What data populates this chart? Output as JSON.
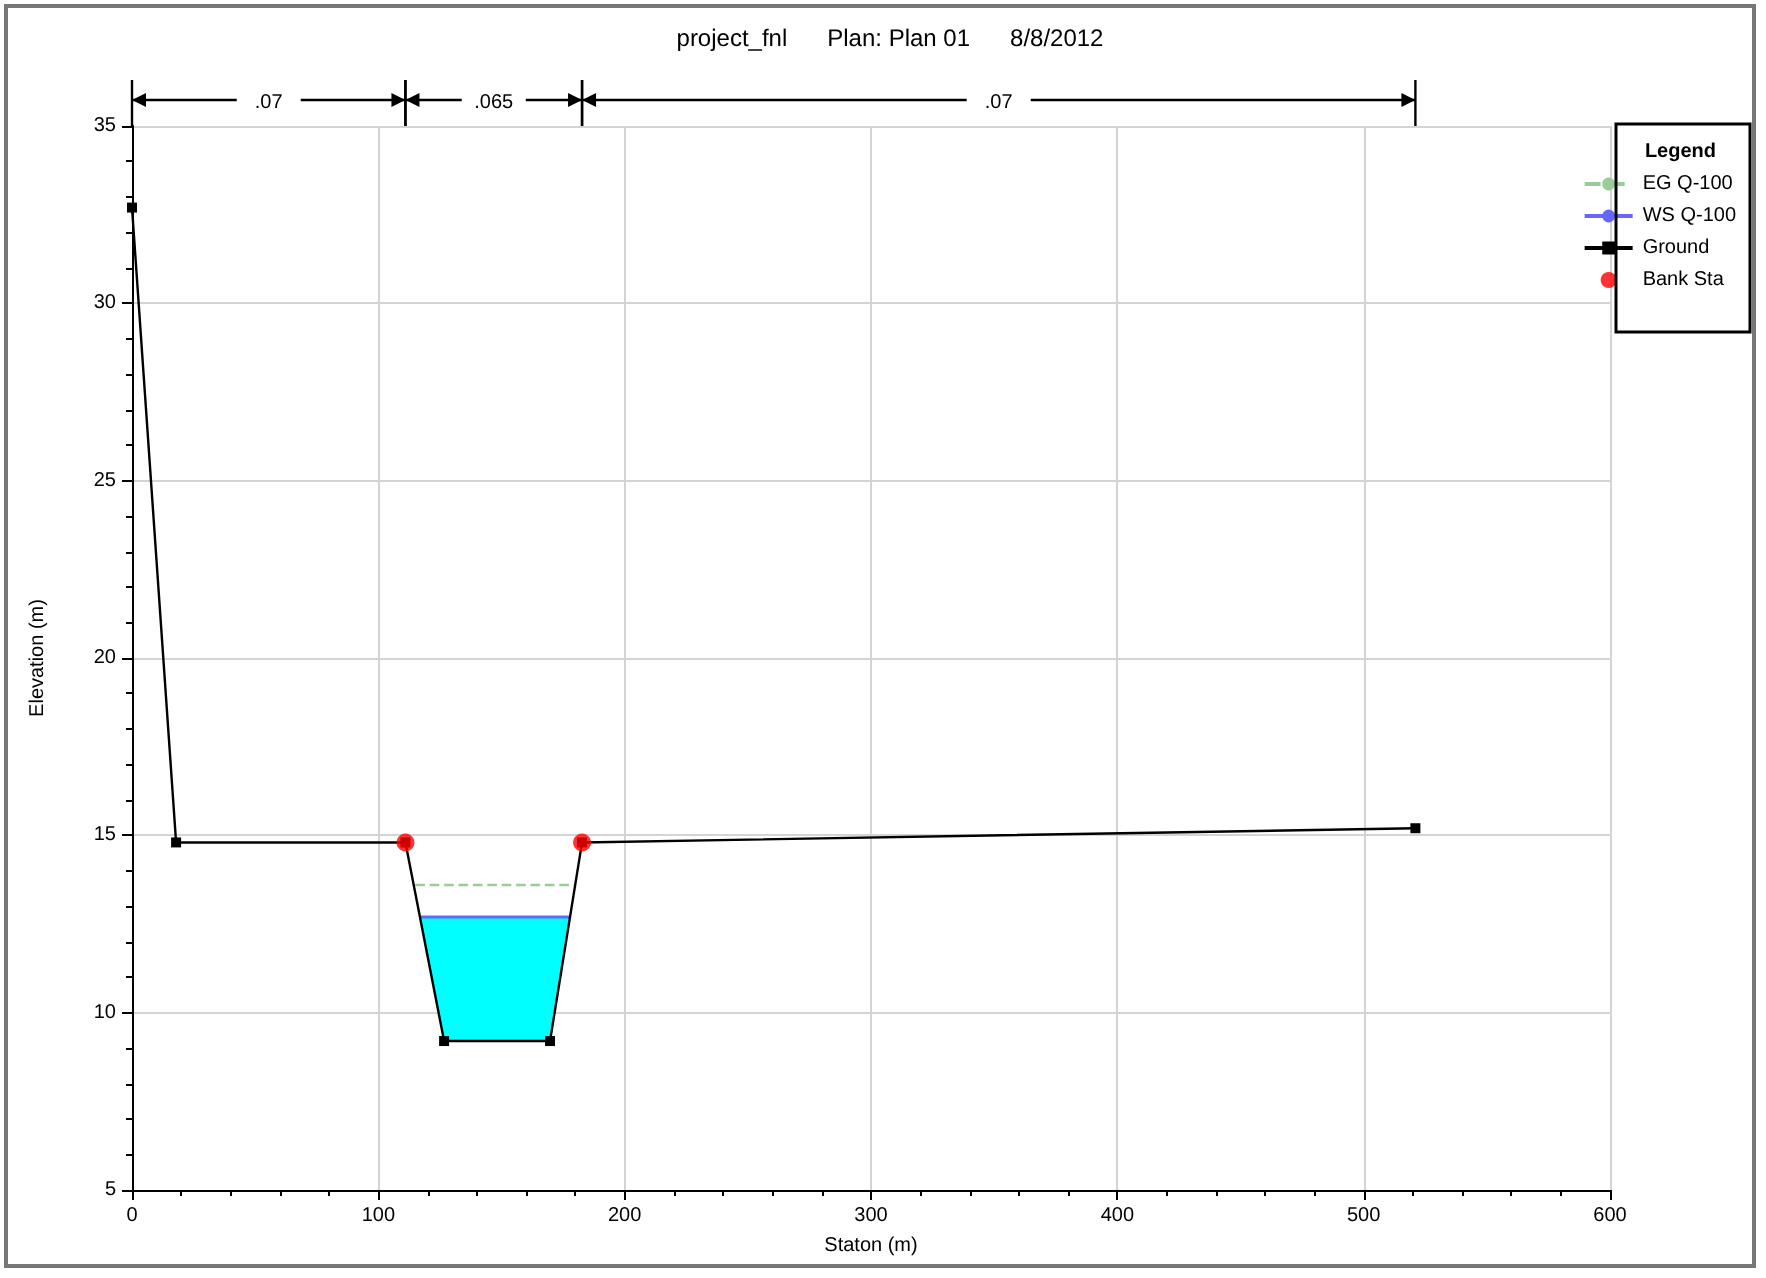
{
  "chart_data": {
    "type": "line",
    "title": "project_fnl      Plan: Plan 01      8/8/2012",
    "xlabel": "Staton (m)",
    "ylabel": "Elevation (m)",
    "legend_title": "Legend",
    "annotations": [
      ".07",
      ".065",
      ".07"
    ],
    "xlim": [
      0,
      600
    ],
    "xticks": [
      0,
      100,
      200,
      300,
      400,
      500,
      600
    ],
    "ylim": [
      5,
      35
    ],
    "yticks": [
      5,
      10,
      15,
      20,
      25,
      30,
      35
    ],
    "grid": true,
    "legend": "right",
    "series": [
      {
        "name": "EG Q-100",
        "type": "line",
        "color": "#99cc99",
        "line_style": "dashed",
        "marker": "none",
        "x": [
          115,
          180
        ],
        "values": [
          13.6,
          13.6
        ]
      },
      {
        "name": "WS Q-100",
        "type": "line",
        "color": "#6666ff",
        "marker": "none",
        "x": [
          116.9,
          177.9
        ],
        "values": [
          12.7,
          12.7
        ]
      },
      {
        "name": "Ground",
        "type": "line",
        "color": "#000000",
        "marker": "square",
        "x": [
          0,
          17.9,
          111,
          126.7,
          169.7,
          182.7,
          521
        ],
        "values": [
          32.7,
          14.8,
          14.8,
          9.2,
          9.2,
          14.8,
          15.2
        ]
      },
      {
        "name": "Bank Sta",
        "type": "scatter",
        "color": "#ff0000",
        "marker": "circle",
        "x": [
          111,
          182.7
        ],
        "values": [
          14.8,
          14.8
        ]
      }
    ]
  }
}
